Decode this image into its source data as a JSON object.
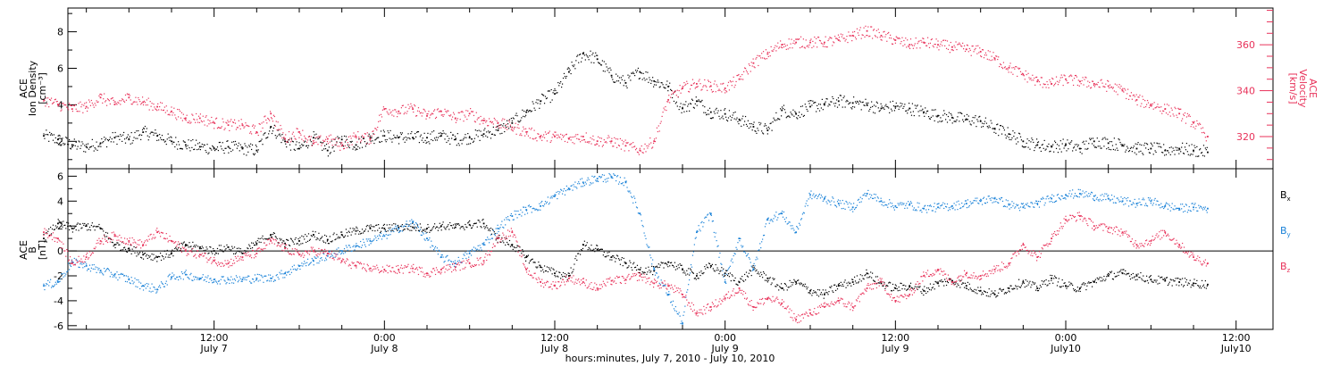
{
  "chart_data": [
    {
      "type": "scatter",
      "ylabel_lines": [
        "ACE",
        "Ion Density",
        "[cm⁻³]"
      ],
      "y2label_lines": [
        "ACE",
        "Velocity",
        "[km/s]"
      ],
      "ylim": [
        0.5,
        9.3
      ],
      "y_ticks": [
        2,
        4,
        6,
        8
      ],
      "y2lim": [
        306,
        376
      ],
      "y2_ticks": [
        320,
        340,
        360
      ],
      "colors": {
        "density": "#000000",
        "velocity": "#e8325a"
      },
      "series": [
        {
          "name": "",
          "axis": "left",
          "x": [
            0,
            1,
            2,
            3,
            4,
            5,
            6,
            7,
            8,
            9,
            10,
            11,
            12,
            13,
            14,
            15,
            16,
            17,
            18,
            19,
            20,
            21,
            22,
            23,
            24,
            25,
            26,
            27,
            28,
            29,
            30,
            31,
            32,
            33,
            34,
            35,
            36,
            37,
            38,
            39,
            40,
            41,
            42,
            43,
            44,
            45,
            46,
            47,
            48,
            49,
            50,
            51,
            52,
            53,
            54,
            55,
            56,
            57,
            58,
            59,
            60,
            61,
            62,
            63,
            64,
            65,
            66,
            67,
            68,
            69,
            70,
            71,
            72,
            73,
            74,
            75,
            76,
            77,
            78,
            79,
            80,
            81,
            82
          ],
          "values": [
            2.3,
            2.1,
            1.8,
            1.7,
            1.9,
            2.2,
            2.1,
            2.5,
            2.3,
            2.0,
            1.8,
            1.7,
            1.6,
            1.7,
            1.6,
            1.5,
            2.8,
            2.0,
            1.6,
            2.2,
            1.5,
            2.1,
            1.8,
            2.2,
            2.3,
            2.2,
            2.2,
            2.2,
            2.3,
            2.1,
            2.2,
            2.4,
            2.6,
            3.0,
            3.6,
            4.2,
            4.6,
            5.8,
            6.8,
            6.5,
            5.6,
            5.2,
            5.8,
            5.3,
            5.0,
            3.8,
            4.2,
            3.6,
            3.5,
            3.2,
            2.8,
            2.6,
            3.7,
            3.5,
            3.9,
            4.0,
            4.2,
            4.1,
            4.0,
            3.8,
            3.9,
            3.8,
            3.6,
            3.4,
            3.3,
            3.2,
            3.1,
            2.7,
            2.4,
            2.0,
            1.8,
            1.7,
            1.8,
            1.6,
            2.0,
            1.9,
            1.8,
            1.6,
            1.6,
            1.5,
            1.6,
            1.5,
            1.4
          ]
        },
        {
          "name": "",
          "axis": "right",
          "x": [
            0,
            1,
            2,
            3,
            4,
            5,
            6,
            7,
            8,
            9,
            10,
            11,
            12,
            13,
            14,
            15,
            16,
            17,
            18,
            19,
            20,
            21,
            22,
            23,
            24,
            25,
            26,
            27,
            28,
            29,
            30,
            31,
            32,
            33,
            34,
            35,
            36,
            37,
            38,
            39,
            40,
            41,
            42,
            43,
            44,
            45,
            46,
            47,
            48,
            49,
            50,
            51,
            52,
            53,
            54,
            55,
            56,
            57,
            58,
            59,
            60,
            61,
            62,
            63,
            64,
            65,
            66,
            67,
            68,
            69,
            70,
            71,
            72,
            73,
            74,
            75,
            76,
            77,
            78,
            79,
            80,
            81,
            82
          ],
          "values": [
            336,
            334,
            332,
            333,
            337,
            334,
            337,
            335,
            333,
            331,
            328,
            328,
            326,
            325,
            325,
            322,
            330,
            319,
            322,
            317,
            319,
            316,
            320,
            319,
            332,
            331,
            332,
            329,
            331,
            328,
            330,
            327,
            326,
            324,
            322,
            320,
            320,
            319,
            320,
            318,
            318,
            316,
            314,
            318,
            336,
            341,
            343,
            342,
            341,
            345,
            352,
            356,
            360,
            361,
            361,
            361,
            362,
            364,
            366,
            364,
            362,
            360,
            361,
            360,
            359,
            358,
            357,
            354,
            350,
            347,
            344,
            343,
            345,
            344,
            343,
            342,
            340,
            336,
            334,
            332,
            330,
            326,
            320
          ]
        }
      ]
    },
    {
      "type": "scatter",
      "ylabel_lines": [
        "ACE",
        "B",
        "[nT]"
      ],
      "ylim": [
        -6.3,
        6.6
      ],
      "y_ticks": [
        -6,
        -4,
        -2,
        0,
        2,
        4,
        6
      ],
      "zero_line": true,
      "series": [
        {
          "name": "Bx",
          "color": "#000000",
          "x": [
            0,
            1,
            2,
            3,
            4,
            5,
            6,
            7,
            8,
            9,
            10,
            11,
            12,
            13,
            14,
            15,
            16,
            17,
            18,
            19,
            20,
            21,
            22,
            23,
            24,
            25,
            26,
            27,
            28,
            29,
            30,
            31,
            32,
            33,
            34,
            35,
            36,
            37,
            38,
            39,
            40,
            41,
            42,
            43,
            44,
            45,
            46,
            47,
            48,
            49,
            50,
            51,
            52,
            53,
            54,
            55,
            56,
            57,
            58,
            59,
            60,
            61,
            62,
            63,
            64,
            65,
            66,
            67,
            68,
            69,
            70,
            71,
            72,
            73,
            74,
            75,
            76,
            77,
            78,
            79,
            80,
            81,
            82
          ],
          "values": [
            1.0,
            2.2,
            1.8,
            2.0,
            1.8,
            0.5,
            0.2,
            -0.3,
            -0.5,
            -0.2,
            0.5,
            0.2,
            0.0,
            0.3,
            -0.2,
            0.6,
            1.3,
            0.6,
            0.8,
            1.3,
            0.9,
            1.3,
            1.6,
            1.8,
            1.8,
            1.9,
            1.9,
            1.8,
            2.0,
            1.9,
            2.1,
            2.2,
            1.0,
            0.5,
            -0.5,
            -1.3,
            -1.8,
            -2.0,
            0.5,
            0.1,
            -0.5,
            -1.0,
            -1.5,
            -1.6,
            -0.9,
            -1.5,
            -2.0,
            -1.2,
            -1.8,
            -2.5,
            -1.5,
            -2.2,
            -3.0,
            -2.5,
            -3.2,
            -3.5,
            -2.8,
            -2.5,
            -1.8,
            -2.6,
            -3.0,
            -2.8,
            -3.2,
            -2.6,
            -2.4,
            -2.8,
            -3.2,
            -3.5,
            -3.0,
            -2.5,
            -3.0,
            -2.2,
            -2.8,
            -3.0,
            -2.5,
            -2.0,
            -1.8,
            -2.0,
            -2.3,
            -2.4,
            -2.5,
            -2.6,
            -2.7
          ]
        },
        {
          "name": "By",
          "color": "#1a82d8",
          "x": [
            0,
            1,
            2,
            3,
            4,
            5,
            6,
            7,
            8,
            9,
            10,
            11,
            12,
            13,
            14,
            15,
            16,
            17,
            18,
            19,
            20,
            21,
            22,
            23,
            24,
            25,
            26,
            27,
            28,
            29,
            30,
            31,
            32,
            33,
            34,
            35,
            36,
            37,
            38,
            39,
            40,
            41,
            42,
            43,
            44,
            45,
            46,
            47,
            48,
            49,
            50,
            51,
            52,
            53,
            54,
            55,
            56,
            57,
            58,
            59,
            60,
            61,
            62,
            63,
            64,
            65,
            66,
            67,
            68,
            69,
            70,
            71,
            72,
            73,
            74,
            75,
            76,
            77,
            78,
            79,
            80,
            81,
            82
          ],
          "values": [
            -2.8,
            -2.5,
            -0.9,
            -1.2,
            -1.6,
            -1.9,
            -2.3,
            -2.8,
            -3.1,
            -2.1,
            -1.9,
            -2.2,
            -2.3,
            -2.3,
            -2.3,
            -2.2,
            -2.2,
            -1.8,
            -1.2,
            -0.8,
            -0.4,
            0.0,
            0.4,
            0.8,
            1.2,
            1.8,
            2.3,
            1.0,
            -0.5,
            -1.0,
            -0.2,
            0.5,
            1.8,
            2.8,
            3.3,
            3.6,
            4.4,
            5.0,
            5.5,
            5.8,
            5.9,
            5.5,
            3.0,
            -1.5,
            -3.5,
            -5.8,
            1.5,
            3.0,
            -2.5,
            1.0,
            -1.5,
            2.5,
            3.0,
            1.5,
            4.5,
            4.2,
            3.8,
            3.5,
            4.6,
            4.0,
            3.6,
            3.7,
            3.4,
            3.5,
            3.6,
            3.8,
            4.0,
            4.2,
            3.7,
            3.5,
            3.8,
            4.2,
            4.5,
            4.6,
            4.4,
            4.2,
            4.0,
            3.8,
            4.0,
            3.6,
            3.4,
            3.5,
            3.4
          ]
        },
        {
          "name": "Bz",
          "color": "#e8325a",
          "x": [
            0,
            1,
            2,
            3,
            4,
            5,
            6,
            7,
            8,
            9,
            10,
            11,
            12,
            13,
            14,
            15,
            16,
            17,
            18,
            19,
            20,
            21,
            22,
            23,
            24,
            25,
            26,
            27,
            28,
            29,
            30,
            31,
            32,
            33,
            34,
            35,
            36,
            37,
            38,
            39,
            40,
            41,
            42,
            43,
            44,
            45,
            46,
            47,
            48,
            49,
            50,
            51,
            52,
            53,
            54,
            55,
            56,
            57,
            58,
            59,
            60,
            61,
            62,
            63,
            64,
            65,
            66,
            67,
            68,
            69,
            70,
            71,
            72,
            73,
            74,
            75,
            76,
            77,
            78,
            79,
            80,
            81,
            82
          ],
          "values": [
            1.5,
            1.0,
            -1.0,
            -0.5,
            0.8,
            1.2,
            0.8,
            0.5,
            1.5,
            0.8,
            0.0,
            -0.3,
            -0.8,
            -1.0,
            -0.5,
            -0.2,
            0.8,
            0.2,
            -0.3,
            0.0,
            -0.2,
            -0.8,
            -1.2,
            -1.4,
            -1.5,
            -1.5,
            -1.4,
            -1.8,
            -1.5,
            -1.3,
            -1.0,
            -0.8,
            1.0,
            1.5,
            -1.5,
            -2.5,
            -2.8,
            -2.2,
            -2.5,
            -3.0,
            -2.4,
            -2.3,
            -2.0,
            -2.6,
            -2.8,
            -3.5,
            -5.0,
            -4.5,
            -3.8,
            -3.0,
            -4.5,
            -3.8,
            -4.2,
            -5.5,
            -5.0,
            -4.5,
            -4.0,
            -4.5,
            -3.0,
            -2.5,
            -4.0,
            -3.5,
            -2.0,
            -1.5,
            -2.5,
            -1.8,
            -2.0,
            -1.5,
            -1.0,
            0.5,
            -0.5,
            1.0,
            2.5,
            2.8,
            2.0,
            1.8,
            1.5,
            0.5,
            0.8,
            1.5,
            0.5,
            -0.5,
            -1.0
          ]
        }
      ]
    },
    {
      "type": "axis",
      "x_ticks": [
        {
          "hour": 12,
          "time": "12:00",
          "day": "July 7"
        },
        {
          "hour": 24,
          "time": "0:00",
          "day": "July 8"
        },
        {
          "hour": 36,
          "time": "12:00",
          "day": "July 8"
        },
        {
          "hour": 48,
          "time": "0:00",
          "day": "July 9"
        },
        {
          "hour": 60,
          "time": "12:00",
          "day": "July 9"
        },
        {
          "hour": 72,
          "time": "0:00",
          "day": "July10"
        },
        {
          "hour": 84,
          "time": "12:00",
          "day": "July10"
        }
      ],
      "xlim": [
        1.7,
        86.6
      ],
      "xlabel": "hours:minutes, July  7, 2010 - July 10, 2010"
    }
  ],
  "legend": {
    "bx": {
      "main": "B",
      "sub": "x"
    },
    "by": {
      "main": "B",
      "sub": "y"
    },
    "bz": {
      "main": "B",
      "sub": "z"
    }
  }
}
